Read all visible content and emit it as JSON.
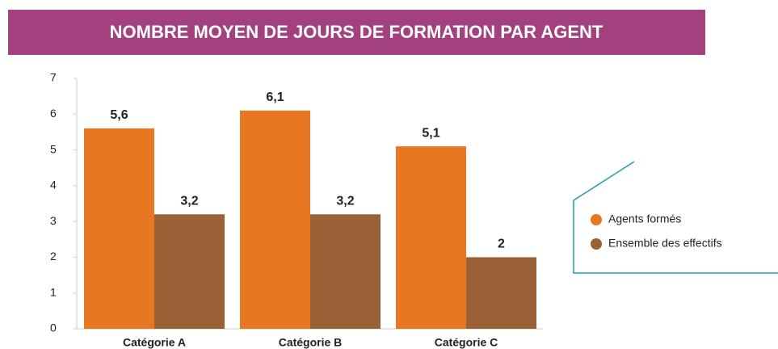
{
  "chart_data": {
    "type": "bar",
    "title": "NOMBRE MOYEN DE JOURS DE FORMATION PAR AGENT",
    "categories": [
      "Catégorie A",
      "Catégorie B",
      "Catégorie C"
    ],
    "series": [
      {
        "name": "Agents formés",
        "color": "#e87722",
        "values": [
          5.6,
          6.1,
          5.1
        ],
        "value_labels": [
          "5,6",
          "6,1",
          "5,1"
        ]
      },
      {
        "name": "Ensemble des effectifs",
        "color": "#9a6137",
        "values": [
          3.2,
          3.2,
          2
        ],
        "value_labels": [
          "3,2",
          "3,2",
          "2"
        ]
      }
    ],
    "ylim": [
      0,
      7
    ],
    "yticks": [
      0,
      1,
      2,
      3,
      4,
      5,
      6,
      7
    ],
    "legend": "right"
  }
}
